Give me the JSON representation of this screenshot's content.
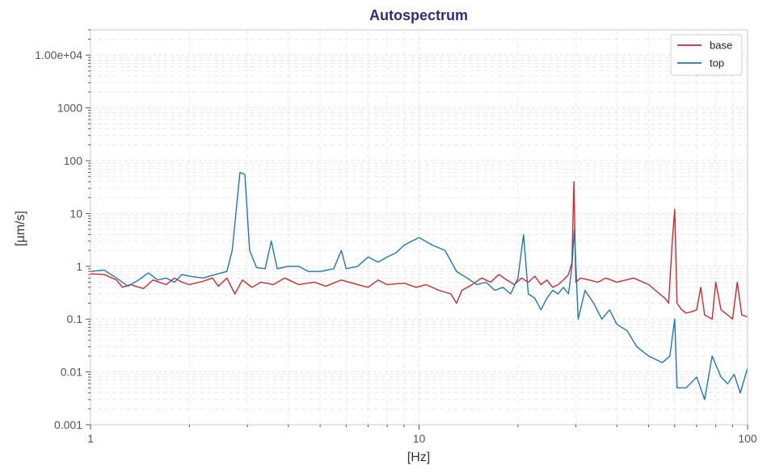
{
  "chart_data": {
    "type": "line",
    "title": "Autospectrum",
    "xlabel": "[Hz]",
    "ylabel": "[µm/s]",
    "x_scale": "log",
    "y_scale": "log",
    "xlim": [
      1,
      100
    ],
    "ylim": [
      0.001,
      30000
    ],
    "x_ticks": [
      {
        "value": 1,
        "label": "1"
      },
      {
        "value": 10,
        "label": "10"
      },
      {
        "value": 100,
        "label": "100"
      }
    ],
    "y_ticks": [
      {
        "value": 0.001,
        "label": "0.001"
      },
      {
        "value": 0.01,
        "label": "0.01"
      },
      {
        "value": 0.1,
        "label": "0.1"
      },
      {
        "value": 1,
        "label": "1"
      },
      {
        "value": 10,
        "label": "10"
      },
      {
        "value": 100,
        "label": "100"
      },
      {
        "value": 1000,
        "label": "1000"
      },
      {
        "value": 10000,
        "label": "1.00e+04"
      }
    ],
    "grid": true,
    "legend_position": "top-right",
    "colors": {
      "title": "#2e2e82",
      "base": "#d62728",
      "top": "#1f77b4",
      "grid": "#e3e3ea",
      "axis": "#c8c8d8"
    },
    "series": [
      {
        "name": "base",
        "color": "#d62728",
        "points": [
          [
            1.0,
            0.72
          ],
          [
            1.1,
            0.7
          ],
          [
            1.2,
            0.55
          ],
          [
            1.25,
            0.4
          ],
          [
            1.32,
            0.45
          ],
          [
            1.45,
            0.38
          ],
          [
            1.55,
            0.55
          ],
          [
            1.7,
            0.45
          ],
          [
            1.8,
            0.6
          ],
          [
            1.9,
            0.5
          ],
          [
            2.0,
            0.45
          ],
          [
            2.2,
            0.52
          ],
          [
            2.35,
            0.6
          ],
          [
            2.45,
            0.42
          ],
          [
            2.6,
            0.6
          ],
          [
            2.75,
            0.3
          ],
          [
            2.9,
            0.55
          ],
          [
            3.1,
            0.4
          ],
          [
            3.3,
            0.5
          ],
          [
            3.6,
            0.45
          ],
          [
            3.9,
            0.6
          ],
          [
            4.3,
            0.45
          ],
          [
            4.8,
            0.5
          ],
          [
            5.2,
            0.42
          ],
          [
            5.8,
            0.55
          ],
          [
            6.5,
            0.45
          ],
          [
            7.0,
            0.4
          ],
          [
            7.5,
            0.55
          ],
          [
            8.0,
            0.45
          ],
          [
            9.0,
            0.48
          ],
          [
            9.8,
            0.4
          ],
          [
            10.5,
            0.45
          ],
          [
            11.5,
            0.35
          ],
          [
            12.5,
            0.3
          ],
          [
            13.0,
            0.2
          ],
          [
            13.5,
            0.35
          ],
          [
            14.5,
            0.45
          ],
          [
            15.5,
            0.6
          ],
          [
            16.5,
            0.5
          ],
          [
            17.5,
            0.7
          ],
          [
            18.5,
            0.55
          ],
          [
            19.5,
            0.45
          ],
          [
            20.5,
            0.6
          ],
          [
            21.5,
            0.5
          ],
          [
            22.5,
            0.65
          ],
          [
            23.5,
            0.45
          ],
          [
            24.5,
            0.55
          ],
          [
            25.5,
            0.4
          ],
          [
            26.5,
            0.45
          ],
          [
            27.5,
            0.55
          ],
          [
            28.5,
            0.7
          ],
          [
            29.2,
            1.2
          ],
          [
            29.6,
            40
          ],
          [
            30.0,
            0.5
          ],
          [
            31.0,
            0.6
          ],
          [
            33.0,
            0.55
          ],
          [
            35.0,
            0.5
          ],
          [
            37.0,
            0.6
          ],
          [
            40.0,
            0.5
          ],
          [
            45.0,
            0.6
          ],
          [
            50.0,
            0.45
          ],
          [
            54.0,
            0.3
          ],
          [
            56.0,
            0.25
          ],
          [
            57.5,
            0.2
          ],
          [
            59.0,
            3.0
          ],
          [
            60.0,
            12
          ],
          [
            61.0,
            0.2
          ],
          [
            63.0,
            0.15
          ],
          [
            65.0,
            0.13
          ],
          [
            68.0,
            0.14
          ],
          [
            70.0,
            0.15
          ],
          [
            72.0,
            0.4
          ],
          [
            74.0,
            0.12
          ],
          [
            78.0,
            0.1
          ],
          [
            80.0,
            0.5
          ],
          [
            83.0,
            0.15
          ],
          [
            87.0,
            0.12
          ],
          [
            90.0,
            0.1
          ],
          [
            93.0,
            0.5
          ],
          [
            96.0,
            0.12
          ],
          [
            100.0,
            0.11
          ]
        ]
      },
      {
        "name": "top",
        "color": "#1f77b4",
        "points": [
          [
            1.0,
            0.8
          ],
          [
            1.1,
            0.85
          ],
          [
            1.2,
            0.6
          ],
          [
            1.3,
            0.42
          ],
          [
            1.4,
            0.55
          ],
          [
            1.5,
            0.75
          ],
          [
            1.6,
            0.55
          ],
          [
            1.7,
            0.6
          ],
          [
            1.8,
            0.5
          ],
          [
            1.9,
            0.7
          ],
          [
            2.0,
            0.65
          ],
          [
            2.2,
            0.6
          ],
          [
            2.4,
            0.7
          ],
          [
            2.6,
            0.8
          ],
          [
            2.7,
            2.0
          ],
          [
            2.85,
            60
          ],
          [
            2.95,
            55
          ],
          [
            3.05,
            2.0
          ],
          [
            3.2,
            0.95
          ],
          [
            3.4,
            0.9
          ],
          [
            3.55,
            3.0
          ],
          [
            3.7,
            0.9
          ],
          [
            4.0,
            1.0
          ],
          [
            4.3,
            1.0
          ],
          [
            4.6,
            0.8
          ],
          [
            5.0,
            0.8
          ],
          [
            5.5,
            0.9
          ],
          [
            5.8,
            2.0
          ],
          [
            6.0,
            0.9
          ],
          [
            6.5,
            1.0
          ],
          [
            7.0,
            1.5
          ],
          [
            7.5,
            1.2
          ],
          [
            8.0,
            1.5
          ],
          [
            8.5,
            1.8
          ],
          [
            9.0,
            2.5
          ],
          [
            9.5,
            3.0
          ],
          [
            10.0,
            3.5
          ],
          [
            11.0,
            2.5
          ],
          [
            12.0,
            2.0
          ],
          [
            13.0,
            0.8
          ],
          [
            14.0,
            0.6
          ],
          [
            15.0,
            0.45
          ],
          [
            16.0,
            0.5
          ],
          [
            17.0,
            0.35
          ],
          [
            18.0,
            0.4
          ],
          [
            19.0,
            0.3
          ],
          [
            20.0,
            0.6
          ],
          [
            20.8,
            4.0
          ],
          [
            21.5,
            0.3
          ],
          [
            22.5,
            0.25
          ],
          [
            23.5,
            0.15
          ],
          [
            24.5,
            0.25
          ],
          [
            25.5,
            0.35
          ],
          [
            26.5,
            0.3
          ],
          [
            27.5,
            0.4
          ],
          [
            28.5,
            0.3
          ],
          [
            29.2,
            1.0
          ],
          [
            29.7,
            5.0
          ],
          [
            30.5,
            0.1
          ],
          [
            32.0,
            0.35
          ],
          [
            34.0,
            0.2
          ],
          [
            36.0,
            0.1
          ],
          [
            38.0,
            0.15
          ],
          [
            40.0,
            0.08
          ],
          [
            43.0,
            0.06
          ],
          [
            46.0,
            0.03
          ],
          [
            50.0,
            0.02
          ],
          [
            55.0,
            0.015
          ],
          [
            58.0,
            0.02
          ],
          [
            60.0,
            0.1
          ],
          [
            61.0,
            0.005
          ],
          [
            65.0,
            0.005
          ],
          [
            70.0,
            0.008
          ],
          [
            74.0,
            0.003
          ],
          [
            78.0,
            0.02
          ],
          [
            83.0,
            0.008
          ],
          [
            87.0,
            0.006
          ],
          [
            91.0,
            0.009
          ],
          [
            95.0,
            0.004
          ],
          [
            100.0,
            0.012
          ]
        ]
      }
    ]
  }
}
